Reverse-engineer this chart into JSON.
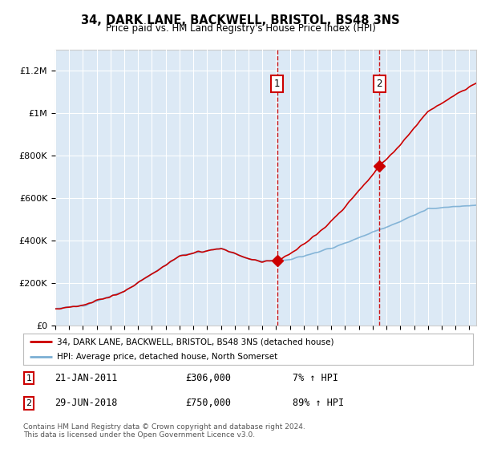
{
  "title": "34, DARK LANE, BACKWELL, BRISTOL, BS48 3NS",
  "subtitle": "Price paid vs. HM Land Registry's House Price Index (HPI)",
  "background_color": "#ffffff",
  "plot_bg_color": "#dce9f5",
  "y_ticks": [
    0,
    200000,
    400000,
    600000,
    800000,
    1000000,
    1200000
  ],
  "y_tick_labels": [
    "£0",
    "£200K",
    "£400K",
    "£600K",
    "£800K",
    "£1M",
    "£1.2M"
  ],
  "ylim": [
    0,
    1300000
  ],
  "x_start_year": 1995,
  "x_end_year": 2025.5,
  "transaction1_date": 2011.07,
  "transaction1_price": 306000,
  "transaction1_label": "1",
  "transaction2_date": 2018.49,
  "transaction2_price": 750000,
  "transaction2_label": "2",
  "legend_line1": "34, DARK LANE, BACKWELL, BRISTOL, BS48 3NS (detached house)",
  "legend_line2": "HPI: Average price, detached house, North Somerset",
  "annotation1_date": "21-JAN-2011",
  "annotation1_price": "£306,000",
  "annotation1_pct": "7% ↑ HPI",
  "annotation2_date": "29-JUN-2018",
  "annotation2_price": "£750,000",
  "annotation2_pct": "89% ↑ HPI",
  "footer": "Contains HM Land Registry data © Crown copyright and database right 2024.\nThis data is licensed under the Open Government Licence v3.0.",
  "line_color_property": "#cc0000",
  "line_color_hpi": "#7bafd4",
  "vline_color": "#cc0000",
  "shade_color": "#dbeaf7",
  "marker_color": "#cc0000"
}
